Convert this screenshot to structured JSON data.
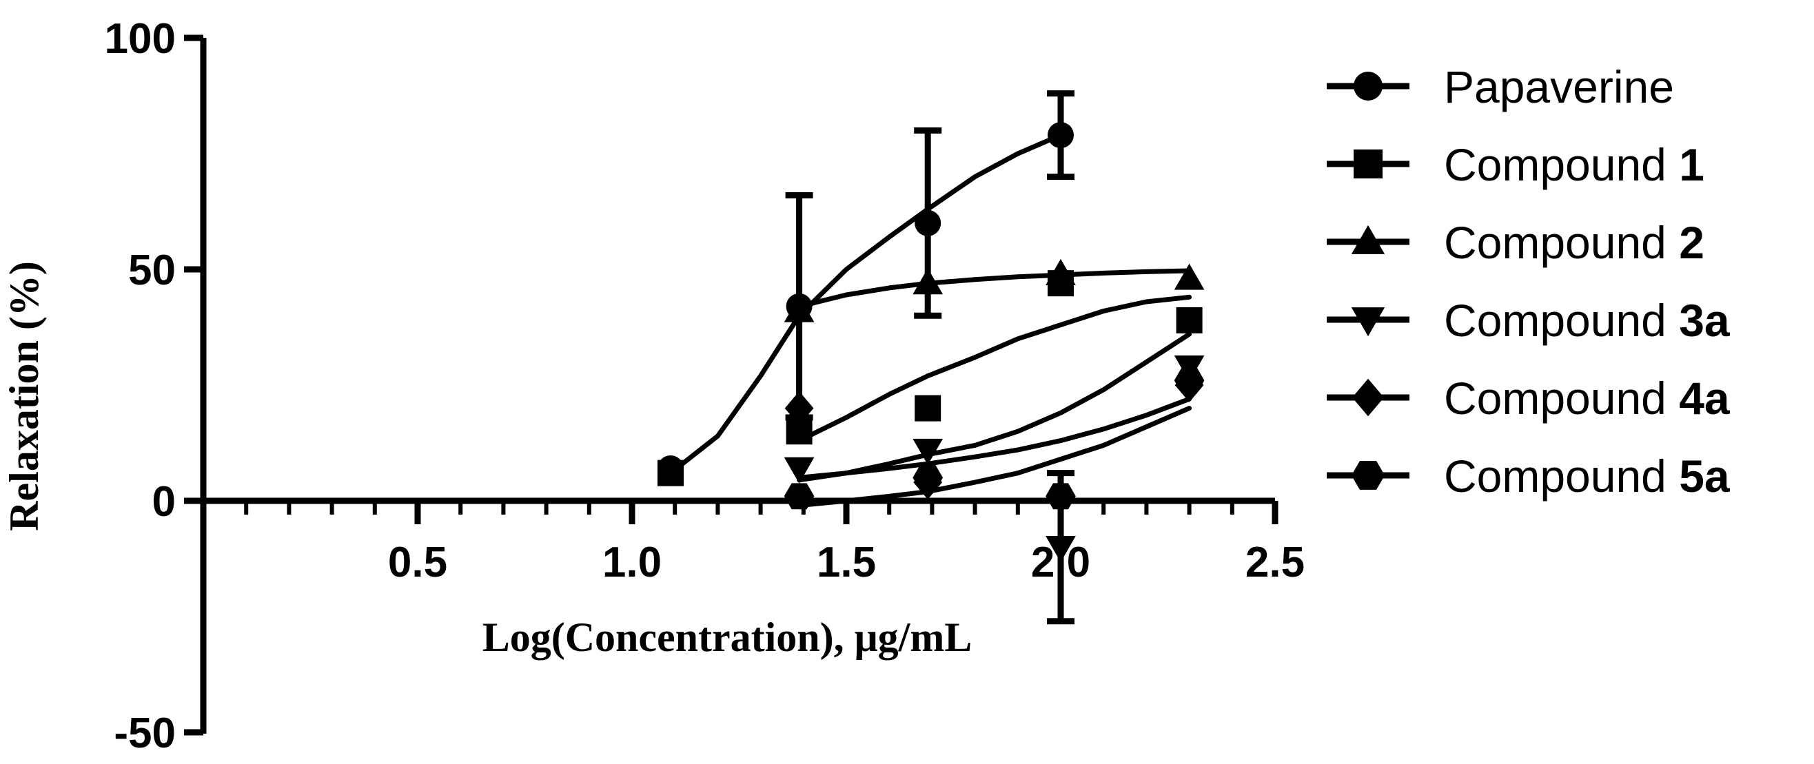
{
  "chart_data": {
    "type": "scatter",
    "xlabel": "Log(Concentration), μg/mL",
    "ylabel": "Relaxation (%)",
    "xlim": [
      0,
      2.5
    ],
    "ylim": [
      -50,
      100
    ],
    "x_ticks": [
      "0.5",
      "1.0",
      "1.5",
      "2.0",
      "2.5"
    ],
    "y_ticks": [
      "100",
      "50",
      "0",
      "-50"
    ],
    "x_tick_values": [
      0.5,
      1.0,
      1.5,
      2.0,
      2.5
    ],
    "y_tick_values": [
      100,
      50,
      0,
      -50
    ],
    "grid": false,
    "legend_position": "right",
    "series": [
      {
        "name": "Papaverine",
        "name_plain": "Papaverine",
        "name_bold": "",
        "marker": "circle",
        "x": [
          1.09,
          1.39,
          1.69,
          2.0
        ],
        "y": [
          7,
          42,
          60,
          79
        ],
        "err": [
          0,
          24,
          20,
          9
        ],
        "fit_x": [
          1.09,
          1.2,
          1.3,
          1.39,
          1.5,
          1.6,
          1.69,
          1.8,
          1.9,
          2.0
        ],
        "fit_y": [
          6,
          14,
          27,
          40,
          50,
          57,
          63,
          70,
          75,
          79
        ]
      },
      {
        "name": "Compound 1",
        "name_plain": "Compound ",
        "name_bold": "1",
        "marker": "square",
        "x": [
          1.09,
          1.39,
          1.69,
          2.0,
          2.3
        ],
        "y": [
          6,
          15,
          20,
          47,
          39
        ],
        "err": [
          0,
          0,
          0,
          0,
          0
        ],
        "fit_x": [
          1.39,
          1.5,
          1.6,
          1.69,
          1.8,
          1.9,
          2.0,
          2.1,
          2.2,
          2.3
        ],
        "fit_y": [
          13,
          18,
          23,
          27,
          31,
          35,
          38,
          41,
          43,
          44
        ]
      },
      {
        "name": "Compound 2",
        "name_plain": "Compound ",
        "name_bold": "2",
        "marker": "triangle-up",
        "x": [
          1.39,
          1.69,
          2.0,
          2.3
        ],
        "y": [
          41,
          47,
          49,
          48
        ],
        "err": [
          0,
          0,
          0,
          0
        ],
        "fit_x": [
          1.39,
          1.5,
          1.6,
          1.69,
          1.8,
          1.9,
          2.0,
          2.1,
          2.2,
          2.3
        ],
        "fit_y": [
          42,
          44.5,
          46,
          47,
          47.8,
          48.4,
          48.8,
          49.2,
          49.5,
          49.7
        ]
      },
      {
        "name": "Compound 3a",
        "name_plain": "Compound ",
        "name_bold": "3a",
        "marker": "triangle-down",
        "x": [
          1.39,
          1.69,
          2.0,
          2.3
        ],
        "y": [
          7,
          11,
          -10,
          29
        ],
        "err": [
          0,
          0,
          16,
          0
        ],
        "fit_x": [
          1.39,
          1.5,
          1.6,
          1.69,
          1.8,
          1.9,
          2.0,
          2.1,
          2.2,
          2.3
        ],
        "fit_y": [
          5,
          6,
          8,
          10,
          12,
          15,
          19,
          24,
          30,
          36
        ]
      },
      {
        "name": "Compound 4a",
        "name_plain": "Compound ",
        "name_bold": "4a",
        "marker": "diamond",
        "x": [
          1.39,
          1.69,
          2.0,
          2.3
        ],
        "y": [
          20,
          4,
          1,
          25
        ],
        "err": [
          0,
          0,
          0,
          0
        ],
        "fit_x": [
          1.39,
          1.5,
          1.6,
          1.69,
          1.8,
          1.9,
          2.0,
          2.1,
          2.2,
          2.3
        ],
        "fit_y": [
          4.5,
          6,
          7,
          8,
          9.5,
          11,
          13,
          15.5,
          18.5,
          22
        ]
      },
      {
        "name": "Compound 5a",
        "name_plain": "Compound ",
        "name_bold": "5a",
        "marker": "hexagon",
        "x": [
          1.39,
          1.69,
          2.0,
          2.3
        ],
        "y": [
          1,
          5,
          1,
          26
        ],
        "err": [
          0,
          0,
          0,
          0
        ],
        "fit_x": [
          1.39,
          1.5,
          1.6,
          1.69,
          1.8,
          1.9,
          2.0,
          2.1,
          2.2,
          2.3
        ],
        "fit_y": [
          -1,
          0,
          1,
          2,
          4,
          6,
          9,
          12,
          16,
          20
        ]
      }
    ]
  }
}
